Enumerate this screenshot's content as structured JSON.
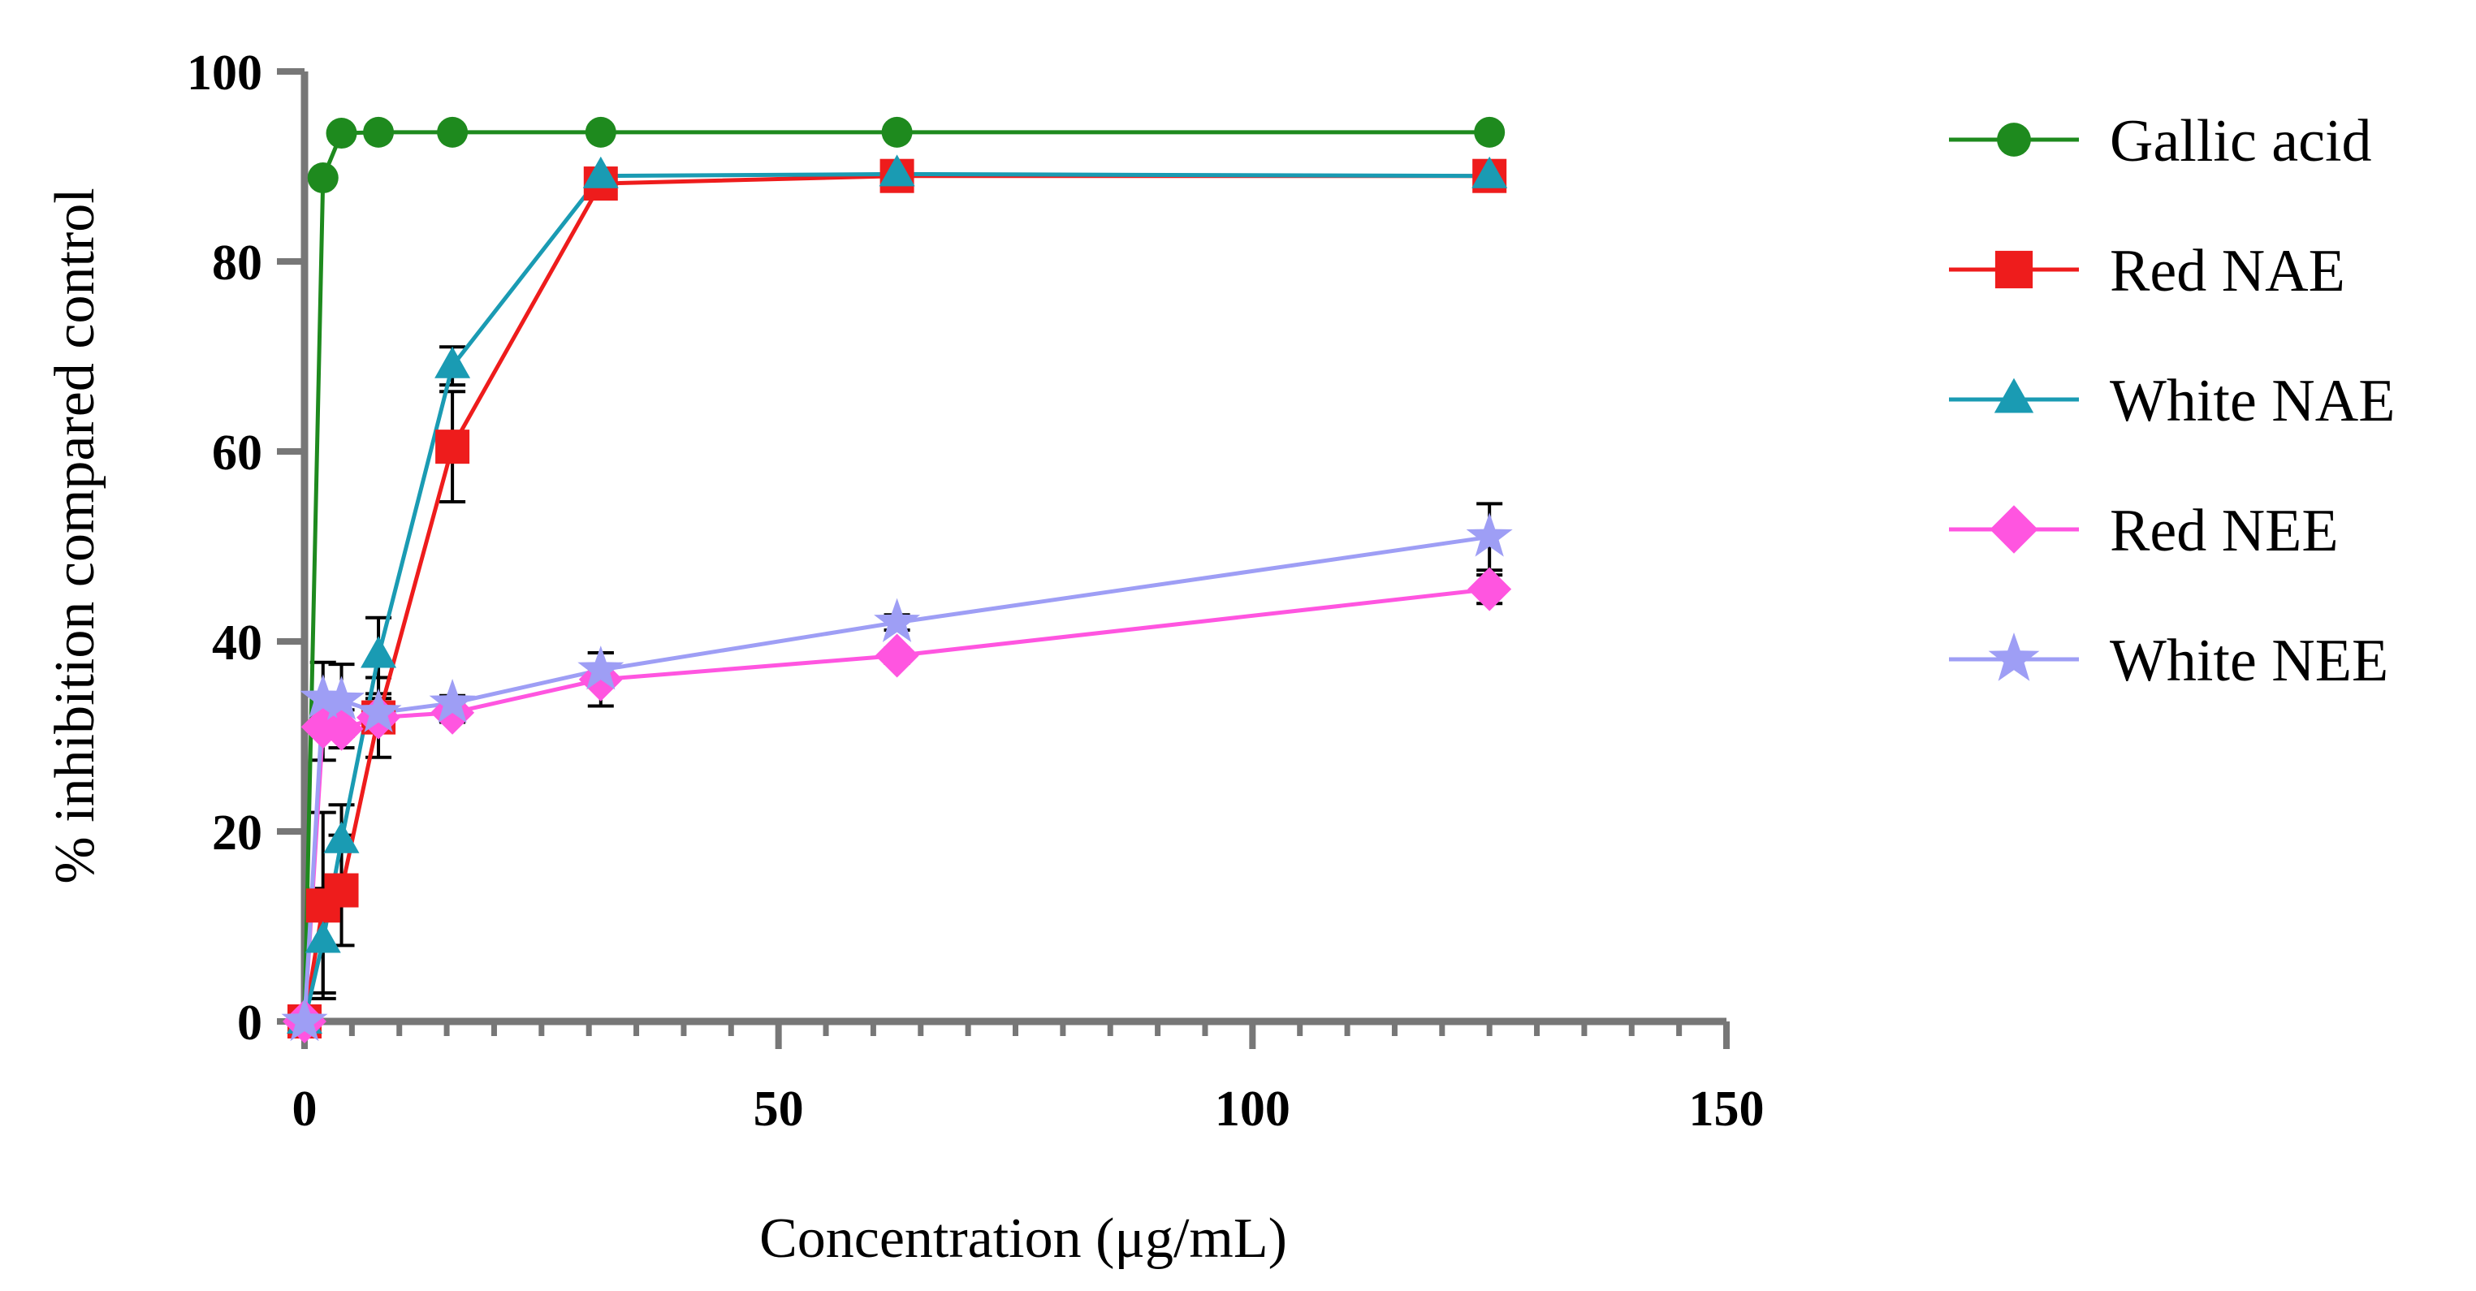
{
  "chart_data": {
    "type": "line",
    "title": "",
    "xlabel": "Concentration (μg/mL)",
    "ylabel": "% inhibition compared control",
    "xlim": [
      0,
      150
    ],
    "ylim": [
      0,
      100
    ],
    "x_ticks": [
      0,
      50,
      100,
      150
    ],
    "x_tick_labels": [
      "0",
      "50",
      "100",
      "150"
    ],
    "y_ticks": [
      0,
      20,
      40,
      60,
      80,
      100
    ],
    "y_tick_labels": [
      "0",
      "20",
      "40",
      "60",
      "80",
      "100"
    ],
    "x_minor_step": 5,
    "grid": false,
    "legend_position": "right",
    "series": [
      {
        "name": "Gallic acid",
        "color": "#1e8a1e",
        "marker": "circle",
        "points": [
          {
            "x": 0,
            "y": 0
          },
          {
            "x": 1.95,
            "y": 88.8
          },
          {
            "x": 3.9,
            "y": 93.5
          },
          {
            "x": 7.8,
            "y": 93.6
          },
          {
            "x": 15.6,
            "y": 93.6
          },
          {
            "x": 31.25,
            "y": 93.6
          },
          {
            "x": 62.5,
            "y": 93.6
          },
          {
            "x": 125,
            "y": 93.6
          }
        ]
      },
      {
        "name": "Red NAE",
        "color": "#ee1c1c",
        "marker": "square",
        "points": [
          {
            "x": 0,
            "y": 0
          },
          {
            "x": 1.95,
            "y": 12.2,
            "err": 9.8
          },
          {
            "x": 3.9,
            "y": 13.8,
            "err": 5.8
          },
          {
            "x": 7.8,
            "y": 32.0,
            "err": 4.2
          },
          {
            "x": 15.6,
            "y": 60.5,
            "err": 5.8
          },
          {
            "x": 31.25,
            "y": 88.2,
            "err": 1.5
          },
          {
            "x": 62.5,
            "y": 89.0,
            "err": 0.4
          },
          {
            "x": 125,
            "y": 89.0,
            "err": 0.4
          }
        ]
      },
      {
        "name": "White NAE",
        "color": "#1a9bb3",
        "marker": "triangle",
        "points": [
          {
            "x": 0,
            "y": 0
          },
          {
            "x": 1.95,
            "y": 8.5,
            "err": 5.5
          },
          {
            "x": 3.9,
            "y": 19.0,
            "err": 3.8
          },
          {
            "x": 7.8,
            "y": 38.5,
            "err": 4.0
          },
          {
            "x": 15.6,
            "y": 69.0,
            "err": 2.0
          },
          {
            "x": 31.25,
            "y": 89.0,
            "err": 0.8
          },
          {
            "x": 62.5,
            "y": 89.2,
            "err": 0.4
          },
          {
            "x": 125,
            "y": 89.0,
            "err": 0.4
          }
        ]
      },
      {
        "name": "Red NEE",
        "color": "#ff55e0",
        "marker": "diamond",
        "points": [
          {
            "x": 0,
            "y": 0
          },
          {
            "x": 1.95,
            "y": 31.0,
            "err": 3.5
          },
          {
            "x": 3.9,
            "y": 30.8,
            "err": 2.0
          },
          {
            "x": 7.8,
            "y": 32.0,
            "err": 1.5
          },
          {
            "x": 15.6,
            "y": 32.5,
            "err": 1.0
          },
          {
            "x": 31.25,
            "y": 36.0,
            "err": 2.8
          },
          {
            "x": 62.5,
            "y": 38.5,
            "err": 0.8
          },
          {
            "x": 125,
            "y": 45.5,
            "err": 1.5
          }
        ]
      },
      {
        "name": "White NEE",
        "color": "#9e9ef5",
        "marker": "star",
        "points": [
          {
            "x": 0,
            "y": 0
          },
          {
            "x": 1.95,
            "y": 34.0,
            "err": 3.8
          },
          {
            "x": 3.9,
            "y": 33.8,
            "err": 3.8
          },
          {
            "x": 7.8,
            "y": 32.5,
            "err": 1.5
          },
          {
            "x": 15.6,
            "y": 33.5,
            "err": 0.8
          },
          {
            "x": 31.25,
            "y": 37.0,
            "err": 1.8
          },
          {
            "x": 62.5,
            "y": 42.0,
            "err": 0.8
          },
          {
            "x": 125,
            "y": 51.0,
            "err": 3.5
          }
        ]
      }
    ]
  }
}
